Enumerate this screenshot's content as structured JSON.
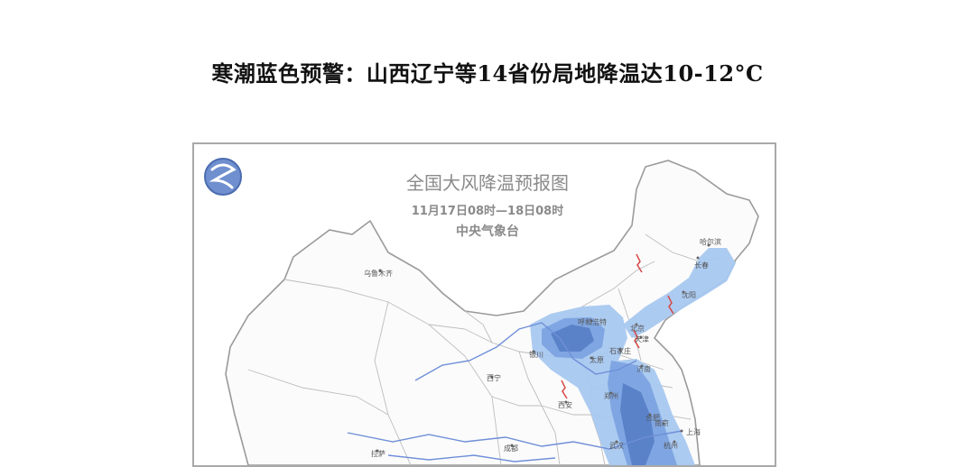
{
  "article": {
    "headline": "寒潮蓝色预警：山西辽宁等14省份局地降温达10-12°C"
  },
  "map": {
    "title": "全国大风降温预报图",
    "time_range": "11月17日08时—18日08时",
    "issuer": "中央气象台",
    "colors": {
      "light_zone": "#a8c8f0",
      "mid_zone": "#7fa6e2",
      "dark_zone": "#5a82c9",
      "border": "#8a8a8a",
      "river": "#6f8fd8",
      "wind_mark": "#d84848"
    },
    "cities": {
      "urumqi": "乌鲁木齐",
      "harbin": "哈尔滨",
      "changchun": "长春",
      "shenyang": "沈阳",
      "hohhot": "呼和浩特",
      "beijing": "北京",
      "tianjin": "天津",
      "yinchuan": "银川",
      "taiyuan": "太原",
      "shijiazhuang": "石家庄",
      "xining": "西宁",
      "jinan": "济南",
      "zhengzhou": "郑州",
      "xian": "西安",
      "hefei": "合肥",
      "shanghai": "上海",
      "nanjing": "南京",
      "hangzhou": "杭州",
      "chengdu": "成都",
      "wuhan": "武汉",
      "lhasa": "拉萨"
    }
  }
}
